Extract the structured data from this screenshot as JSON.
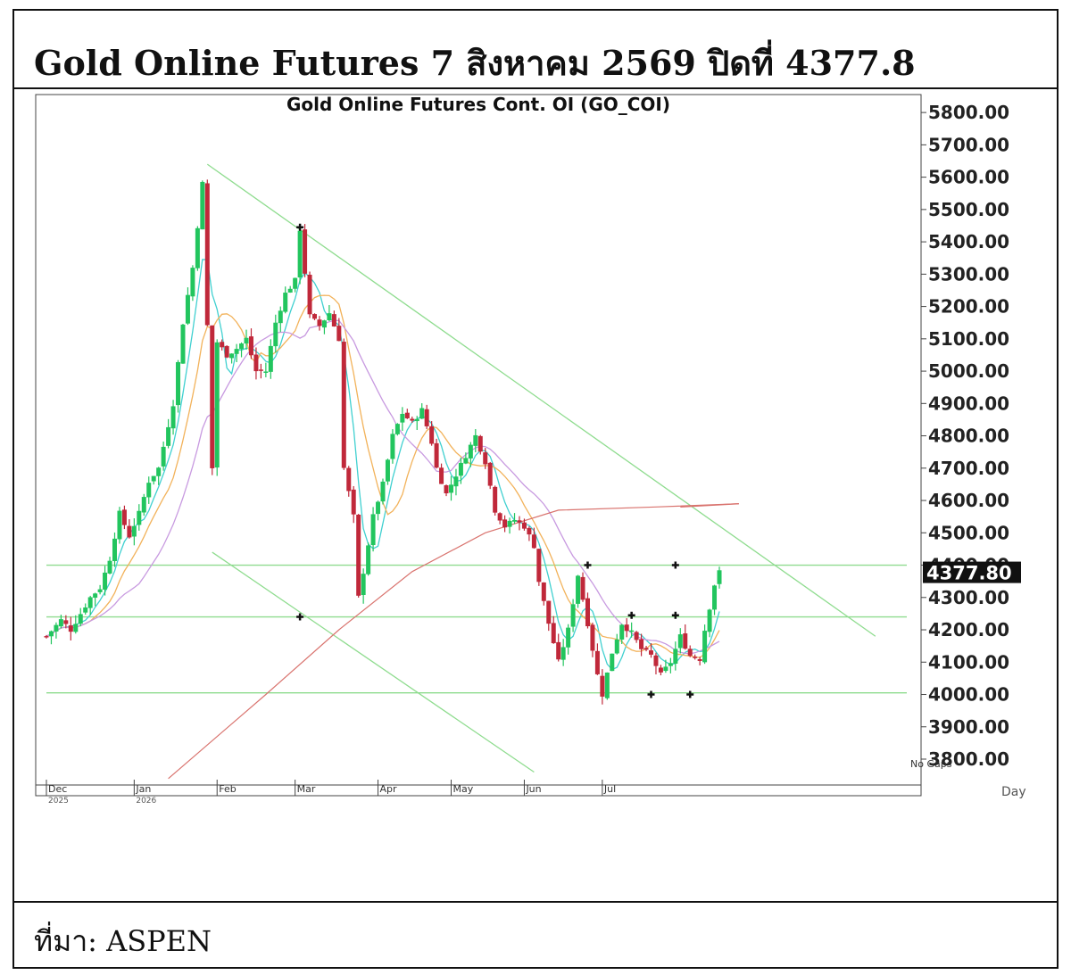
{
  "header": {
    "title": "Gold Online Futures 7 สิงหาคม 2569 ปิดที่ 4377.8"
  },
  "footer": {
    "source": "ที่มา: ASPEN"
  },
  "colors": {
    "up": "#22c55e",
    "down": "#c0283a",
    "trend": "#8fdc8f",
    "ma_fast": "#40d0d0",
    "ma_mid": "#f2b25a",
    "ma_slow": "#c89ae0",
    "ma_long": "#d9736e",
    "price_tag": "#111111"
  },
  "chart_data": {
    "type": "candlestick",
    "title": "Gold Online Futures Cont. OI (GO_COI)",
    "y_ticks": [
      "5800.00",
      "5700.00",
      "5600.00",
      "5500.00",
      "5400.00",
      "5300.00",
      "5200.00",
      "5100.00",
      "5000.00",
      "4900.00",
      "4800.00",
      "4700.00",
      "4600.00",
      "4500.00",
      "4400.00",
      "4300.00",
      "4200.00",
      "4100.00",
      "4000.00",
      "3900.00",
      "3800.00"
    ],
    "ylim": [
      3720,
      5850
    ],
    "last_price_label": "4377.80",
    "last_price": 4377.8,
    "x_axis_unit": "Day",
    "gaps_note": "No Gaps",
    "months": [
      {
        "label": "Dec",
        "year": "2025",
        "day": 0
      },
      {
        "label": "Jan",
        "year": "2026",
        "day": 18
      },
      {
        "label": "Feb",
        "day": 35
      },
      {
        "label": "Mar",
        "day": 51
      },
      {
        "label": "Apr",
        "day": 68
      },
      {
        "label": "May",
        "day": 83
      },
      {
        "label": "Jun",
        "day": 98
      },
      {
        "label": "Jul",
        "day": 114
      }
    ],
    "horizontal_levels": [
      4400,
      4240,
      4005
    ],
    "trendlines": [
      {
        "name": "upper-down",
        "from": [
          33,
          5640
        ],
        "to": [
          170,
          4180
        ]
      },
      {
        "name": "lower-down",
        "from": [
          34,
          4440
        ],
        "to": [
          100,
          3760
        ]
      },
      {
        "name": "ma-flat",
        "from": [
          130,
          4580
        ],
        "to": [
          142,
          4590
        ]
      }
    ],
    "markers": [
      {
        "day": 52,
        "price": 5445
      },
      {
        "day": 52,
        "price": 4240
      },
      {
        "day": 111,
        "price": 4400
      },
      {
        "day": 120,
        "price": 4245
      },
      {
        "day": 129,
        "price": 4400
      },
      {
        "day": 129,
        "price": 4245
      },
      {
        "day": 124,
        "price": 4000
      },
      {
        "day": 132,
        "price": 4000
      }
    ],
    "price_path": [
      [
        0,
        4180
      ],
      [
        3,
        4230
      ],
      [
        5,
        4200
      ],
      [
        7,
        4250
      ],
      [
        9,
        4300
      ],
      [
        11,
        4330
      ],
      [
        13,
        4420
      ],
      [
        15,
        4560
      ],
      [
        17,
        4490
      ],
      [
        19,
        4560
      ],
      [
        21,
        4660
      ],
      [
        23,
        4700
      ],
      [
        26,
        4900
      ],
      [
        28,
        5150
      ],
      [
        30,
        5320
      ],
      [
        32,
        5580
      ],
      [
        34,
        4700
      ],
      [
        35,
        5090
      ],
      [
        37,
        5050
      ],
      [
        39,
        5070
      ],
      [
        41,
        5100
      ],
      [
        43,
        5000
      ],
      [
        45,
        5000
      ],
      [
        47,
        5150
      ],
      [
        49,
        5240
      ],
      [
        51,
        5280
      ],
      [
        52,
        5440
      ],
      [
        54,
        5170
      ],
      [
        56,
        5140
      ],
      [
        58,
        5180
      ],
      [
        60,
        5100
      ],
      [
        61,
        4700
      ],
      [
        63,
        4550
      ],
      [
        64,
        4300
      ],
      [
        65,
        4380
      ],
      [
        67,
        4550
      ],
      [
        69,
        4650
      ],
      [
        71,
        4800
      ],
      [
        73,
        4870
      ],
      [
        75,
        4840
      ],
      [
        77,
        4880
      ],
      [
        79,
        4780
      ],
      [
        80,
        4700
      ],
      [
        82,
        4620
      ],
      [
        84,
        4680
      ],
      [
        86,
        4740
      ],
      [
        88,
        4800
      ],
      [
        90,
        4720
      ],
      [
        92,
        4570
      ],
      [
        94,
        4520
      ],
      [
        96,
        4540
      ],
      [
        98,
        4520
      ],
      [
        100,
        4460
      ],
      [
        101,
        4350
      ],
      [
        103,
        4220
      ],
      [
        105,
        4100
      ],
      [
        107,
        4200
      ],
      [
        109,
        4370
      ],
      [
        111,
        4220
      ],
      [
        113,
        4060
      ],
      [
        114,
        4000
      ],
      [
        116,
        4130
      ],
      [
        118,
        4220
      ],
      [
        120,
        4190
      ],
      [
        122,
        4140
      ],
      [
        124,
        4120
      ],
      [
        126,
        4060
      ],
      [
        128,
        4100
      ],
      [
        130,
        4180
      ],
      [
        132,
        4120
      ],
      [
        134,
        4110
      ],
      [
        135,
        4200
      ],
      [
        137,
        4340
      ],
      [
        138,
        4378
      ]
    ]
  }
}
